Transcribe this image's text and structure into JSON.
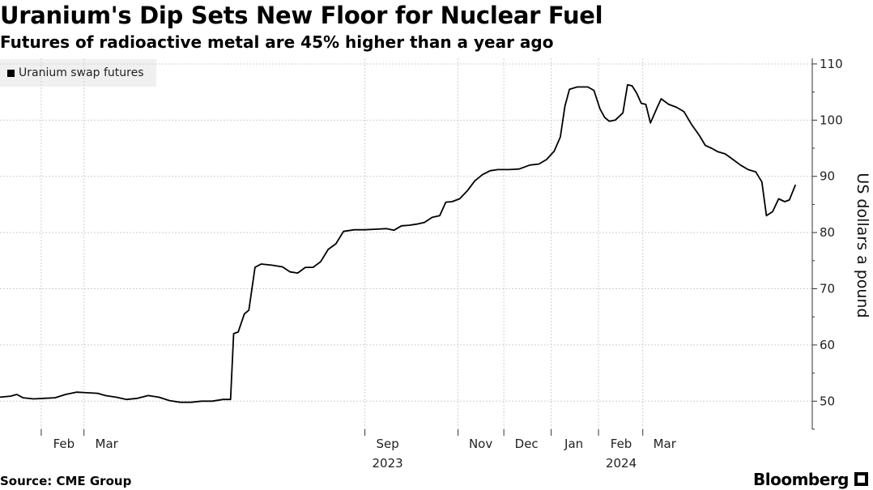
{
  "header": {
    "title": "Uranium's Dip Sets New Floor for Nuclear Fuel",
    "subtitle": "Futures of radioactive metal are 45% higher than a year ago"
  },
  "footer": {
    "source": "Source: CME Group",
    "brand": "Bloomberg"
  },
  "chart_data": {
    "type": "line",
    "title": "Uranium's Dip Sets New Floor for Nuclear Fuel",
    "subtitle": "Futures of radioactive metal are 45% higher than a year ago",
    "ylabel": "US dollars a pound",
    "xlabel": "",
    "ylim": [
      45,
      111
    ],
    "yticks": [
      50,
      60,
      70,
      80,
      90,
      100,
      110
    ],
    "y_axis_side": "right",
    "legend_position": "top-left",
    "grid": true,
    "x_tick_labels": [
      {
        "label": "Feb",
        "sub": "",
        "x": "2023-02-01"
      },
      {
        "label": "Mar",
        "sub": "",
        "x": "2023-03-01"
      },
      {
        "label": "Sep",
        "sub": "2023",
        "x": "2023-09-01"
      },
      {
        "label": "Nov",
        "sub": "",
        "x": "2023-11-01"
      },
      {
        "label": "Dec",
        "sub": "",
        "x": "2023-12-01"
      },
      {
        "label": "Jan",
        "sub": "",
        "x": "2024-01-01"
      },
      {
        "label": "Feb",
        "sub": "2024",
        "x": "2024-02-01"
      },
      {
        "label": "Mar",
        "sub": "",
        "x": "2024-03-01"
      }
    ],
    "series": [
      {
        "name": "Uranium swap futures",
        "color": "#000000",
        "points": [
          [
            "2023-01-05",
            50.7
          ],
          [
            "2023-01-12",
            50.9
          ],
          [
            "2023-01-16",
            51.2
          ],
          [
            "2023-01-20",
            50.6
          ],
          [
            "2023-01-27",
            50.4
          ],
          [
            "2023-02-03",
            50.5
          ],
          [
            "2023-02-10",
            50.6
          ],
          [
            "2023-02-17",
            51.2
          ],
          [
            "2023-02-24",
            51.6
          ],
          [
            "2023-03-03",
            51.5
          ],
          [
            "2023-03-10",
            51.4
          ],
          [
            "2023-03-15",
            51.0
          ],
          [
            "2023-03-22",
            50.7
          ],
          [
            "2023-03-29",
            50.3
          ],
          [
            "2023-04-05",
            50.5
          ],
          [
            "2023-04-12",
            51.0
          ],
          [
            "2023-04-19",
            50.7
          ],
          [
            "2023-04-26",
            50.1
          ],
          [
            "2023-05-03",
            49.8
          ],
          [
            "2023-05-10",
            49.8
          ],
          [
            "2023-05-17",
            50.0
          ],
          [
            "2023-05-24",
            50.0
          ],
          [
            "2023-05-31",
            50.3
          ],
          [
            "2023-06-05",
            50.3
          ],
          [
            "2023-06-07",
            62.0
          ],
          [
            "2023-06-10",
            62.3
          ],
          [
            "2023-06-14",
            65.5
          ],
          [
            "2023-06-17",
            66.2
          ],
          [
            "2023-06-21",
            73.8
          ],
          [
            "2023-06-25",
            74.4
          ],
          [
            "2023-07-02",
            74.2
          ],
          [
            "2023-07-09",
            73.9
          ],
          [
            "2023-07-14",
            73.0
          ],
          [
            "2023-07-19",
            72.8
          ],
          [
            "2023-07-24",
            73.8
          ],
          [
            "2023-07-29",
            73.8
          ],
          [
            "2023-08-03",
            74.8
          ],
          [
            "2023-08-08",
            77.0
          ],
          [
            "2023-08-13",
            78.0
          ],
          [
            "2023-08-18",
            80.2
          ],
          [
            "2023-08-25",
            80.5
          ],
          [
            "2023-09-01",
            80.5
          ],
          [
            "2023-09-08",
            80.6
          ],
          [
            "2023-09-15",
            80.7
          ],
          [
            "2023-09-20",
            80.4
          ],
          [
            "2023-09-25",
            81.2
          ],
          [
            "2023-09-30",
            81.3
          ],
          [
            "2023-10-05",
            81.5
          ],
          [
            "2023-10-10",
            81.8
          ],
          [
            "2023-10-15",
            82.7
          ],
          [
            "2023-10-20",
            83.0
          ],
          [
            "2023-10-24",
            85.4
          ],
          [
            "2023-10-28",
            85.5
          ],
          [
            "2023-11-02",
            86.0
          ],
          [
            "2023-11-07",
            87.4
          ],
          [
            "2023-11-12",
            89.2
          ],
          [
            "2023-11-17",
            90.3
          ],
          [
            "2023-11-22",
            91.0
          ],
          [
            "2023-11-27",
            91.2
          ],
          [
            "2023-12-04",
            91.2
          ],
          [
            "2023-12-11",
            91.3
          ],
          [
            "2023-12-18",
            92.0
          ],
          [
            "2023-12-24",
            92.2
          ],
          [
            "2023-12-29",
            93.0
          ],
          [
            "2024-01-03",
            94.5
          ],
          [
            "2024-01-07",
            97.0
          ],
          [
            "2024-01-10",
            102.5
          ],
          [
            "2024-01-13",
            105.5
          ],
          [
            "2024-01-18",
            105.9
          ],
          [
            "2024-01-25",
            105.9
          ],
          [
            "2024-01-29",
            105.3
          ],
          [
            "2024-02-02",
            102.0
          ],
          [
            "2024-02-05",
            100.5
          ],
          [
            "2024-02-08",
            99.8
          ],
          [
            "2024-02-12",
            100.0
          ],
          [
            "2024-02-17",
            101.3
          ],
          [
            "2024-02-20",
            106.3
          ],
          [
            "2024-02-23",
            106.1
          ],
          [
            "2024-02-26",
            104.8
          ],
          [
            "2024-02-29",
            103.0
          ],
          [
            "2024-03-03",
            102.8
          ],
          [
            "2024-03-06",
            99.5
          ],
          [
            "2024-03-10",
            102.0
          ],
          [
            "2024-03-13",
            103.8
          ],
          [
            "2024-03-18",
            102.8
          ],
          [
            "2024-03-23",
            102.3
          ],
          [
            "2024-03-28",
            101.5
          ],
          [
            "2024-04-02",
            99.2
          ],
          [
            "2024-04-07",
            97.3
          ],
          [
            "2024-04-11",
            95.5
          ],
          [
            "2024-04-15",
            95.0
          ],
          [
            "2024-04-19",
            94.4
          ],
          [
            "2024-04-24",
            94.0
          ],
          [
            "2024-04-29",
            93.0
          ],
          [
            "2024-05-04",
            92.0
          ],
          [
            "2024-05-09",
            91.2
          ],
          [
            "2024-05-14",
            90.8
          ],
          [
            "2024-05-18",
            89.0
          ],
          [
            "2024-05-21",
            83.0
          ],
          [
            "2024-05-25",
            83.7
          ],
          [
            "2024-05-29",
            86.0
          ],
          [
            "2024-06-02",
            85.5
          ],
          [
            "2024-06-05",
            85.8
          ],
          [
            "2024-06-09",
            88.5
          ]
        ]
      }
    ]
  }
}
